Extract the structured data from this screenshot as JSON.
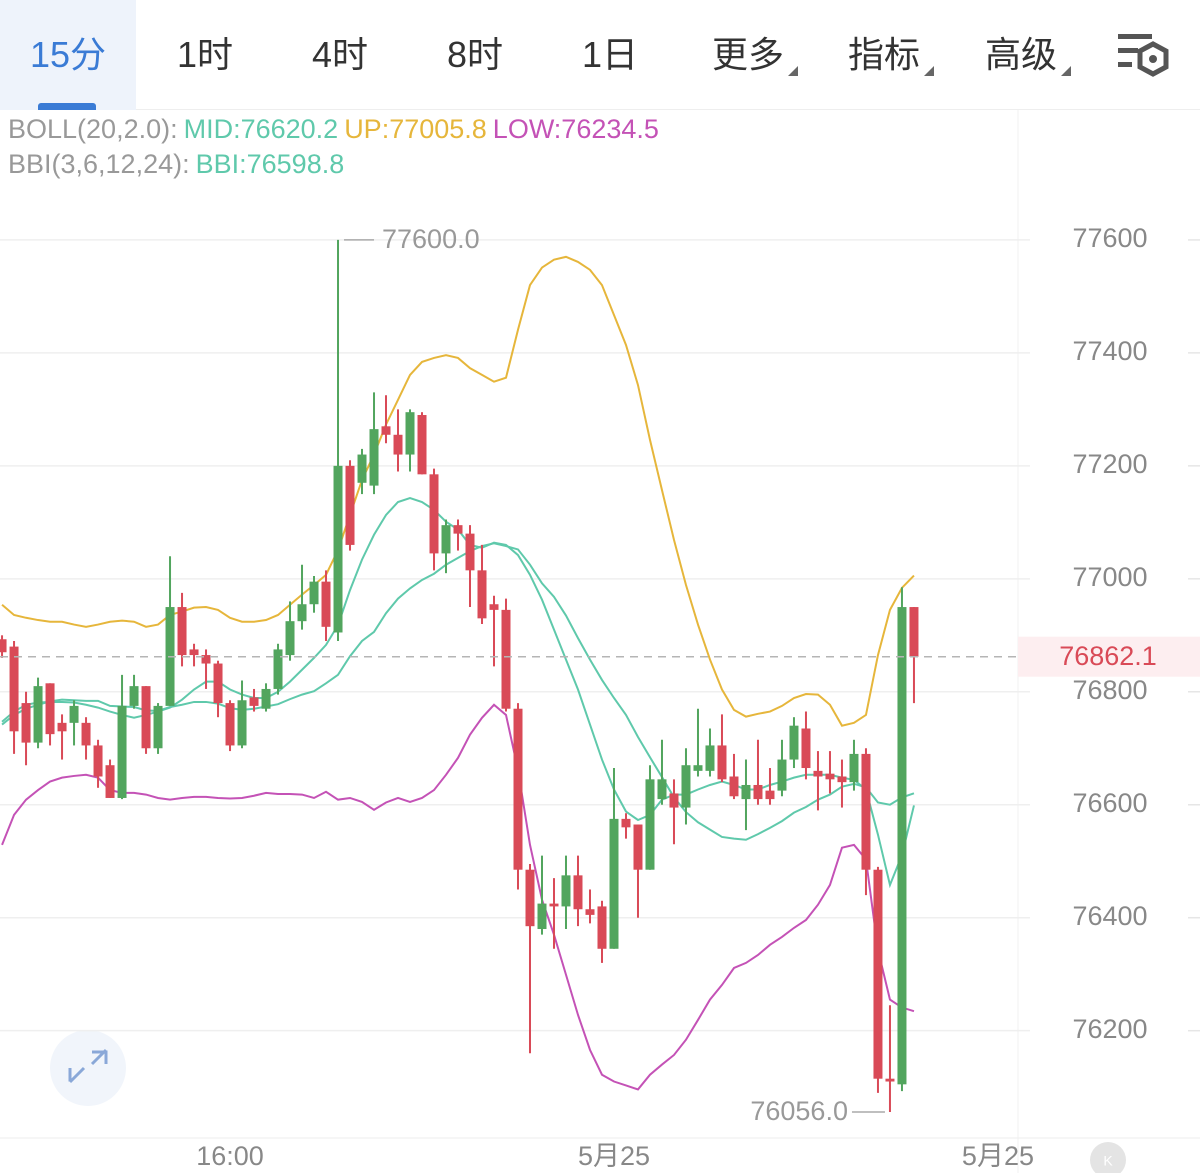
{
  "tabs": [
    "15分",
    "1时",
    "4时",
    "8时",
    "1日",
    "更多",
    "指标",
    "高级"
  ],
  "chart_data": {
    "type": "candlestick",
    "indicators": [
      {
        "name": "BOLL(20,2.0):",
        "series": [
          0,
          1,
          2
        ]
      },
      {
        "name": "BBI(3,6,12,24):",
        "series": [
          3
        ]
      }
    ],
    "x": [
      0,
      1,
      2,
      3,
      4,
      5,
      6,
      7,
      8,
      9,
      10,
      11,
      12,
      13,
      14,
      15,
      16,
      17,
      18,
      19,
      20,
      21,
      22,
      23,
      24,
      25,
      26,
      27,
      28,
      29,
      30,
      31,
      32,
      33,
      34,
      35,
      36,
      37,
      38,
      39,
      40,
      41,
      42,
      43,
      44,
      45,
      46,
      47,
      48,
      49,
      50,
      51,
      52,
      53,
      54,
      55,
      56,
      57,
      58,
      59,
      60,
      61,
      62,
      63,
      64,
      65,
      66,
      67,
      68,
      69,
      70,
      71,
      72,
      73,
      74,
      75,
      76
    ],
    "open": [
      76893,
      76880,
      76780,
      76710,
      76815,
      76745,
      76745,
      76745,
      76705,
      76670,
      76612,
      76775,
      76810,
      76700,
      76775,
      76950,
      76875,
      76865,
      76850,
      76780,
      76705,
      76790,
      76770,
      76805,
      76865,
      76925,
      76955,
      76995,
      76905,
      77200,
      77170,
      77165,
      77270,
      77255,
      77220,
      77290,
      77185,
      77045,
      77095,
      77080,
      77015,
      76955,
      76945,
      76770,
      76485,
      76380,
      76425,
      76420,
      76475,
      76415,
      76420,
      76345,
      76575,
      76565,
      76485,
      76610,
      76620,
      76595,
      76660,
      76660,
      76705,
      76650,
      76610,
      76635,
      76625,
      76625,
      76680,
      76735,
      76660,
      76655,
      76650,
      76640,
      76690,
      76485,
      76115,
      76105,
      76950
    ],
    "high": [
      76900,
      76890,
      76800,
      76825,
      76815,
      76760,
      76785,
      76755,
      76715,
      76680,
      76830,
      76830,
      76810,
      76780,
      77040,
      76975,
      76885,
      76875,
      76855,
      76785,
      76820,
      76805,
      76815,
      76885,
      76960,
      77025,
      77005,
      77015,
      77600,
      77210,
      77230,
      77330,
      77325,
      77300,
      77300,
      77295,
      77195,
      77105,
      77105,
      77095,
      77060,
      76970,
      76965,
      76780,
      76495,
      76510,
      76470,
      76510,
      76510,
      76450,
      76430,
      76665,
      76585,
      76565,
      76670,
      76715,
      76645,
      76700,
      76770,
      76735,
      76760,
      76690,
      76680,
      76715,
      76665,
      76715,
      76755,
      76765,
      76695,
      76695,
      76680,
      76715,
      76700,
      76490,
      76245,
      76985,
      76950
    ],
    "low": [
      76860,
      76690,
      76670,
      76700,
      76705,
      76680,
      76705,
      76680,
      76630,
      76612,
      76610,
      76770,
      76690,
      76690,
      76775,
      76845,
      76845,
      76805,
      76755,
      76695,
      76700,
      76765,
      76765,
      76795,
      76855,
      76910,
      76940,
      76890,
      76890,
      77050,
      77150,
      77150,
      77240,
      77190,
      77190,
      77185,
      77015,
      77010,
      77050,
      76950,
      76920,
      76845,
      76765,
      76450,
      76160,
      76370,
      76345,
      76380,
      76385,
      76390,
      76320,
      76345,
      76540,
      76400,
      76485,
      76600,
      76530,
      76565,
      76650,
      76650,
      76640,
      76610,
      76555,
      76600,
      76600,
      76615,
      76665,
      76645,
      76590,
      76620,
      76595,
      76625,
      76440,
      76090,
      76056,
      76093,
      76780
    ],
    "close": [
      76870,
      76730,
      76710,
      76810,
      76725,
      76730,
      76775,
      76705,
      76650,
      76612,
      76775,
      76810,
      76700,
      76775,
      76950,
      76865,
      76865,
      76850,
      76780,
      76705,
      76785,
      76775,
      76805,
      76875,
      76925,
      76955,
      76995,
      76915,
      77200,
      77060,
      77220,
      77265,
      77255,
      77220,
      77295,
      77185,
      77045,
      77095,
      77080,
      77015,
      76930,
      76945,
      76770,
      76485,
      76385,
      76425,
      76420,
      76475,
      76415,
      76405,
      76345,
      76575,
      76560,
      76485,
      76645,
      76645,
      76595,
      76670,
      76670,
      76705,
      76645,
      76615,
      76635,
      76610,
      76610,
      76680,
      76740,
      76665,
      76650,
      76645,
      76640,
      76690,
      76485,
      76115,
      76110,
      76950,
      76862.1
    ],
    "up_color": "#52a55e",
    "down_color": "#d94a57",
    "series": [
      {
        "legend": "MID:76620.2",
        "color": "#5fc9ab",
        "values": [
          76742,
          76759,
          76770,
          76777,
          76783,
          76786,
          76785,
          76784,
          76784,
          76775,
          76774,
          76773,
          76767,
          76766,
          76773,
          76777,
          76782,
          76782,
          76779,
          76771,
          76768,
          76770,
          76774,
          76778,
          76787,
          76795,
          76801,
          76815,
          76830,
          76863,
          76890,
          76906,
          76939,
          76965,
          76983,
          76998,
          77009,
          77025,
          77037,
          77049,
          77058,
          77063,
          77058,
          77052,
          77025,
          76992,
          76968,
          76935,
          76895,
          76857,
          76821,
          76789,
          76759,
          76720,
          76684,
          76649,
          76613,
          76587,
          76569,
          76556,
          76543,
          76540,
          76538,
          76548,
          76559,
          76571,
          76586,
          76596,
          76609,
          76618,
          76632,
          76637,
          76631,
          76604,
          76600,
          76613,
          76620.2
        ]
      },
      {
        "legend": "UP:77005.8",
        "color": "#e6b63b",
        "values": [
          76954,
          76936,
          76931,
          76927,
          76924,
          76924,
          76919,
          76915,
          76919,
          76924,
          76926,
          76924,
          76915,
          76919,
          76936,
          76942,
          76949,
          76950,
          76945,
          76931,
          76924,
          76924,
          76927,
          76936,
          76954,
          76972,
          76989,
          77007,
          77051,
          77113,
          77175,
          77220,
          77273,
          77317,
          77361,
          77384,
          77391,
          77396,
          77391,
          77373,
          77361,
          77349,
          77356,
          77441,
          77520,
          77551,
          77565,
          77570,
          77561,
          77547,
          77520,
          77467,
          77414,
          77343,
          77246,
          77157,
          77069,
          76989,
          76919,
          76857,
          76804,
          76768,
          76756,
          76761,
          76765,
          76775,
          76789,
          76796,
          76795,
          76777,
          76740,
          76745,
          76759,
          76865,
          76945,
          76984,
          77005.8
        ]
      },
      {
        "legend": "LOW:76234.5",
        "color": "#c452b6",
        "values": [
          76529,
          76582,
          76609,
          76626,
          76641,
          76648,
          76651,
          76653,
          76648,
          76626,
          76621,
          76621,
          76618,
          76612,
          76609,
          76612,
          76614,
          76614,
          76612,
          76611,
          76612,
          76616,
          76621,
          76619,
          76619,
          76618,
          76612,
          76623,
          76609,
          76612,
          76605,
          76591,
          76604,
          76612,
          76605,
          76612,
          76626,
          76653,
          76683,
          76724,
          76754,
          76777,
          76759,
          76662,
          76529,
          76432,
          76370,
          76299,
          76228,
          76166,
          76122,
          76110,
          76103,
          76096,
          76122,
          76140,
          76157,
          76184,
          76219,
          76255,
          76281,
          76311,
          76320,
          76334,
          76352,
          76366,
          76382,
          76396,
          76423,
          76458,
          76524,
          76529,
          76503,
          76343,
          76255,
          76241,
          76234.5
        ]
      },
      {
        "legend": "BBI:76598.8",
        "color": "#5fc9ab",
        "values": [
          76747,
          76765,
          76777,
          76781,
          76782,
          76782,
          76781,
          76777,
          76772,
          76765,
          76759,
          76754,
          76759,
          76765,
          76772,
          76786,
          76804,
          76818,
          76818,
          76804,
          76795,
          76789,
          76789,
          76800,
          76818,
          76839,
          76860,
          76883,
          76918,
          76980,
          77034,
          77078,
          77113,
          77136,
          77143,
          77136,
          77122,
          77101,
          77087,
          77060,
          77055,
          77064,
          77060,
          77042,
          77007,
          76963,
          76910,
          76857,
          76804,
          76742,
          76680,
          76627,
          76588,
          76573,
          76582,
          76609,
          76618,
          76618,
          76627,
          76635,
          76641,
          76635,
          76627,
          76627,
          76635,
          76641,
          76648,
          76653,
          76653,
          76653,
          76648,
          76644,
          76627,
          76547,
          76458,
          76511,
          76598.8
        ]
      }
    ],
    "last_price": 76862.1,
    "max_label": {
      "value": 77600,
      "label": "77600.0"
    },
    "min_label": {
      "value": 76056,
      "label": "76056.0"
    },
    "xlim": [
      -0.17,
      84.67
    ],
    "xticks": [
      {
        "value": 19,
        "label": "16:00"
      },
      {
        "value": 51,
        "label": "5月25"
      },
      {
        "value": 83,
        "label": "5月25"
      }
    ],
    "ylim": [
      76010,
      77830
    ],
    "yticks": [
      76200,
      76400,
      76600,
      76800,
      77000,
      77200,
      77400,
      77600
    ],
    "grid": true
  }
}
